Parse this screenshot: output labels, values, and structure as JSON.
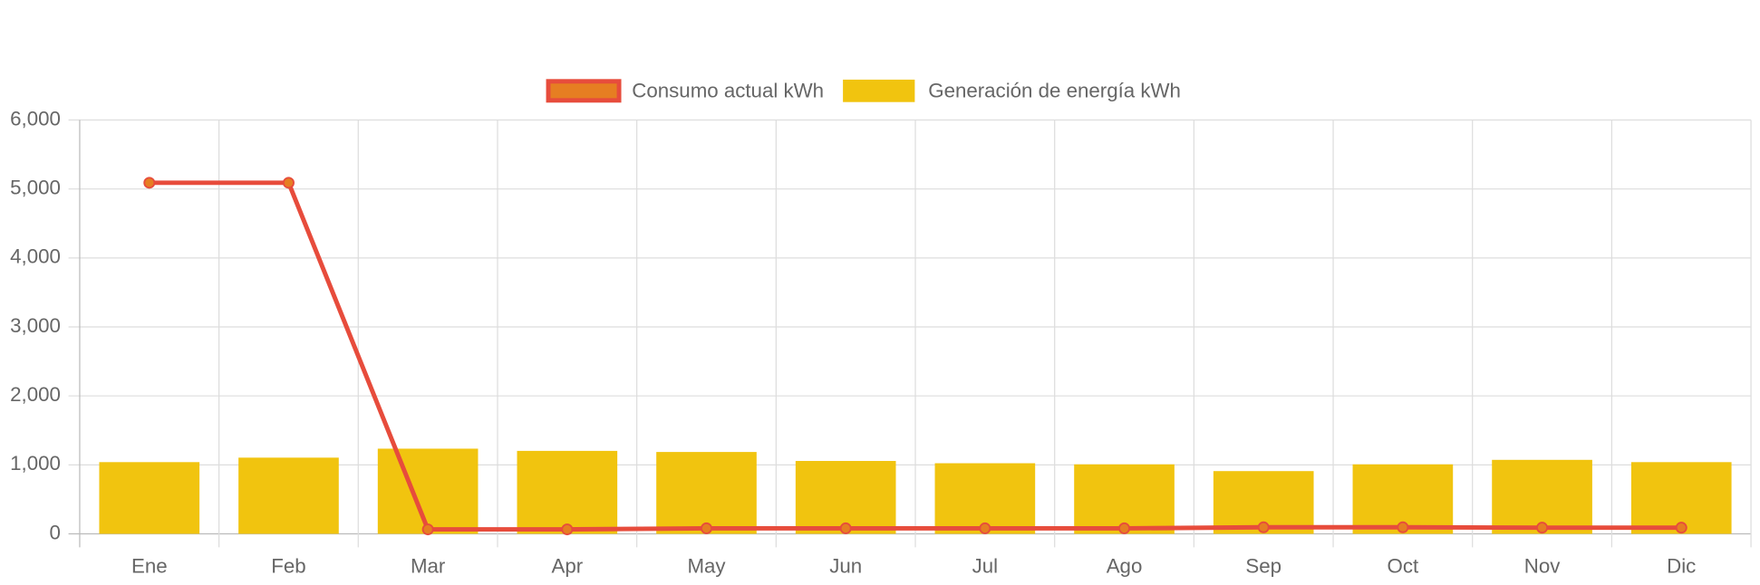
{
  "chart_data": {
    "type": "bar",
    "categories": [
      "Ene",
      "Feb",
      "Mar",
      "Apr",
      "May",
      "Jun",
      "Jul",
      "Ago",
      "Sep",
      "Oct",
      "Nov",
      "Dic"
    ],
    "series": [
      {
        "name": "Consumo actual kWh",
        "type": "line",
        "color": "#e74c3c",
        "point_color": "#e67e22",
        "values": [
          5090,
          5090,
          65,
          65,
          80,
          80,
          80,
          80,
          95,
          95,
          90,
          90
        ]
      },
      {
        "name": "Generación de energía kWh",
        "type": "bar",
        "color": "#f1c40f",
        "values": [
          1040,
          1105,
          1235,
          1203,
          1187,
          1057,
          1024,
          1008,
          910,
          1008,
          1073,
          1040
        ]
      }
    ],
    "ylim": [
      0,
      6000
    ],
    "yticks": [
      0,
      {
        "value": 1000,
        "label": "1,000"
      },
      {
        "value": 2000,
        "label": "2,000"
      },
      {
        "value": 3000,
        "label": "3,000"
      },
      {
        "value": 4000,
        "label": "4,000"
      },
      {
        "value": 5000,
        "label": "5,000"
      },
      {
        "value": 6000,
        "label": "6,000"
      }
    ],
    "grid": true,
    "legend": "top"
  }
}
